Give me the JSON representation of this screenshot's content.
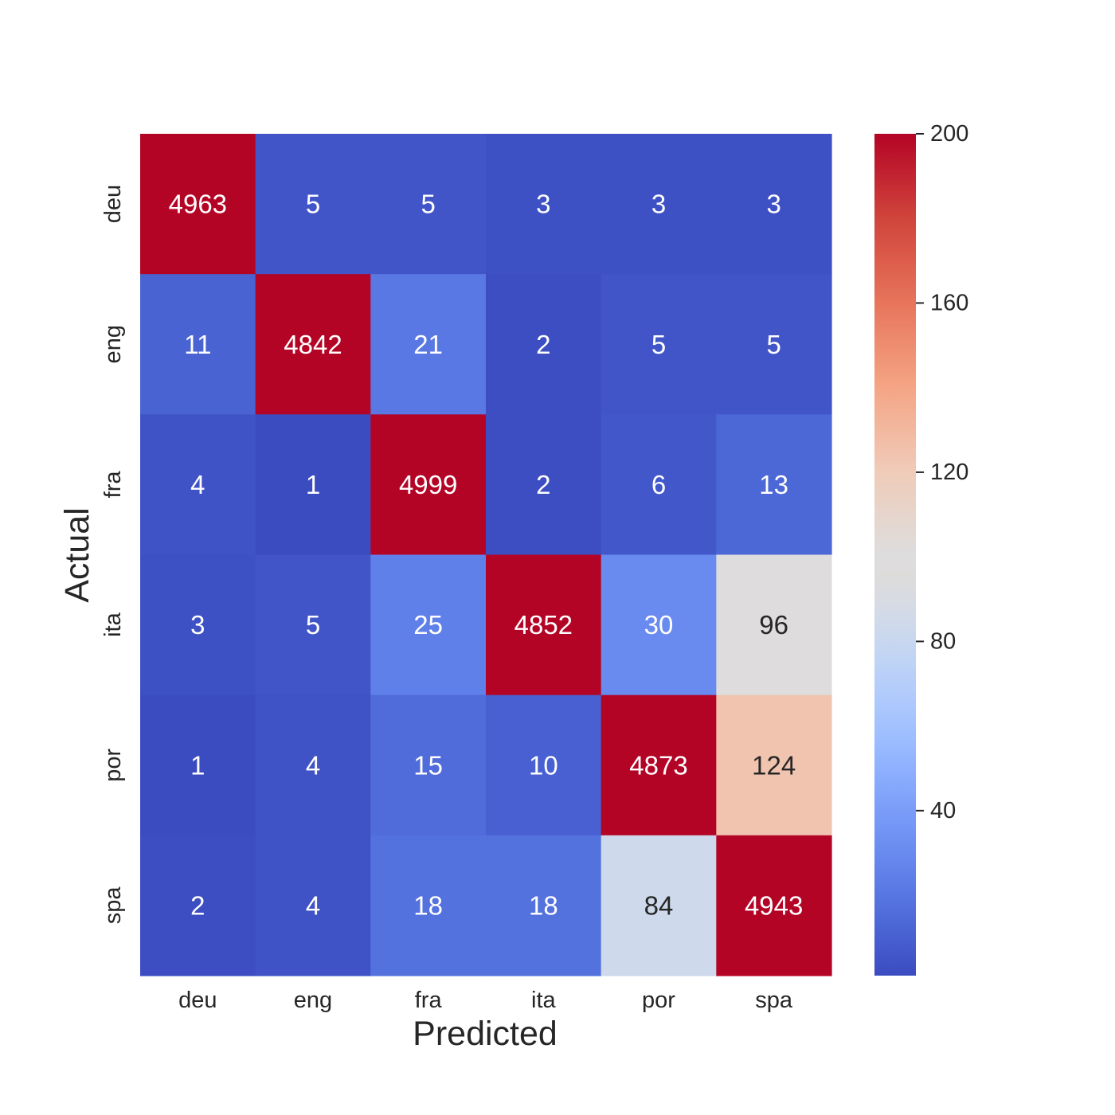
{
  "chart_data": {
    "type": "heatmap",
    "title": "",
    "xlabel": "Predicted",
    "ylabel": "Actual",
    "x_categories": [
      "deu",
      "eng",
      "fra",
      "ita",
      "por",
      "spa"
    ],
    "y_categories": [
      "deu",
      "eng",
      "fra",
      "ita",
      "por",
      "spa"
    ],
    "values": [
      [
        4963,
        5,
        5,
        3,
        3,
        3
      ],
      [
        11,
        4842,
        21,
        2,
        5,
        5
      ],
      [
        4,
        1,
        4999,
        2,
        6,
        13
      ],
      [
        3,
        5,
        25,
        4852,
        30,
        96
      ],
      [
        1,
        4,
        15,
        10,
        4873,
        124
      ],
      [
        2,
        4,
        18,
        18,
        84,
        4943
      ]
    ],
    "colormap": "coolwarm",
    "color_range": [
      1,
      200
    ],
    "colorbar": {
      "ticks": [
        40,
        80,
        120,
        160,
        200
      ],
      "tick_labels": [
        "40",
        "80",
        "120",
        "160",
        "200"
      ]
    },
    "colors": {
      "low": "#3b4cc0",
      "mid": "#dddddd",
      "high": "#b40426",
      "text_dark": "#262626",
      "text_light": "#ffffff"
    }
  }
}
